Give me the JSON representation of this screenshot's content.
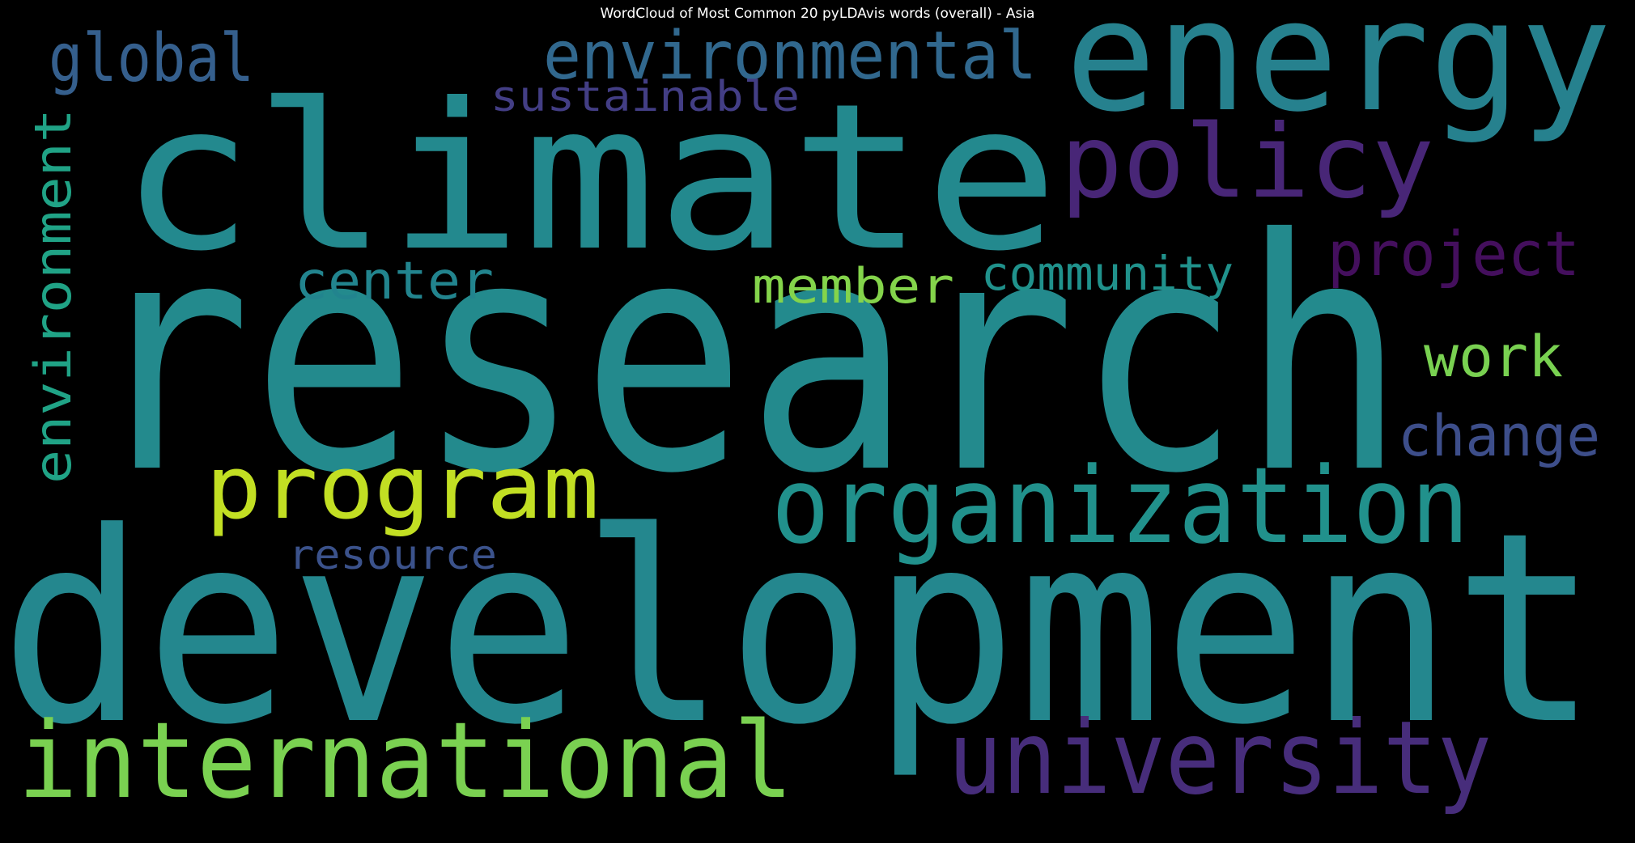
{
  "title": "WordCloud of Most Common 20 pyLDAvis words (overall) - Asia",
  "palette": "viridis",
  "background_color": "#000000",
  "words": [
    {
      "text": "research",
      "color": "#238a8d"
    },
    {
      "text": "development",
      "color": "#24878e"
    },
    {
      "text": "climate",
      "color": "#23898e"
    },
    {
      "text": "energy",
      "color": "#26818e"
    },
    {
      "text": "organization",
      "color": "#21918c"
    },
    {
      "text": "international",
      "color": "#7ad151"
    },
    {
      "text": "university",
      "color": "#472d7b"
    },
    {
      "text": "program",
      "color": "#c2df23"
    },
    {
      "text": "policy",
      "color": "#482677"
    },
    {
      "text": "environmental",
      "color": "#31688e"
    },
    {
      "text": "global",
      "color": "#355f8d"
    },
    {
      "text": "project",
      "color": "#440f5d"
    },
    {
      "text": "environment",
      "color": "#20a386"
    },
    {
      "text": "center",
      "color": "#22848e"
    },
    {
      "text": "member",
      "color": "#84d44b"
    },
    {
      "text": "community",
      "color": "#20928c"
    },
    {
      "text": "work",
      "color": "#79d151"
    },
    {
      "text": "change",
      "color": "#3d4e8a"
    },
    {
      "text": "sustainable",
      "color": "#433e85"
    },
    {
      "text": "resource",
      "color": "#3b528b"
    }
  ]
}
